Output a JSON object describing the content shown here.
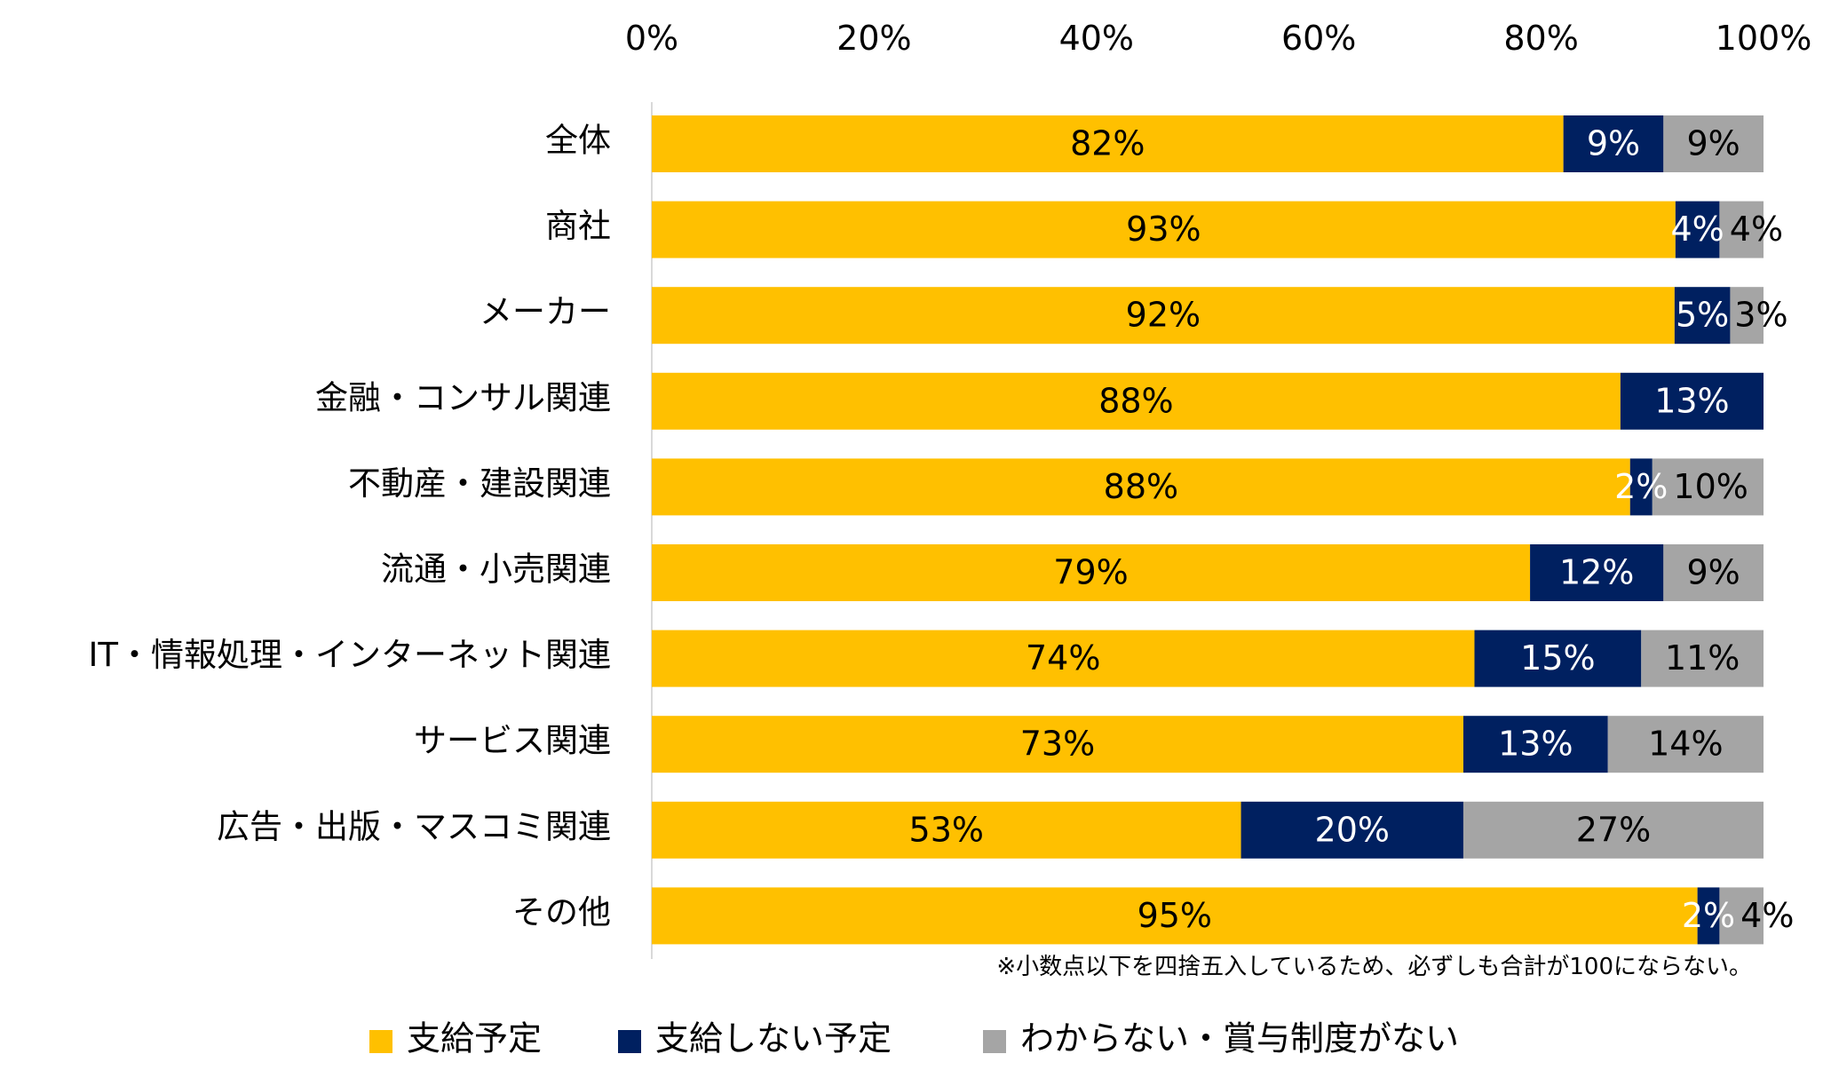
{
  "chart_data": {
    "type": "bar",
    "orientation": "horizontal",
    "stacked": true,
    "xlim": [
      0,
      100
    ],
    "x_ticks": [
      "0%",
      "20%",
      "40%",
      "60%",
      "80%",
      "100%"
    ],
    "x_axis_position": "top",
    "grid": false,
    "legend_position": "bottom",
    "categories": [
      "全体",
      "商社",
      "メーカー",
      "金融・コンサル関連",
      "不動産・建設関連",
      "流通・小売関連",
      "IT・情報処理・インターネット関連",
      "サービス関連",
      "広告・出版・マスコミ関連",
      "その他"
    ],
    "series": [
      {
        "name": "支給予定",
        "color": "#FFC000",
        "label_color": "#000000",
        "values": [
          82,
          93,
          92,
          88,
          88,
          79,
          74,
          73,
          53,
          95
        ]
      },
      {
        "name": "支給しない予定",
        "color": "#002060",
        "label_color": "#FFFFFF",
        "values": [
          9,
          4,
          5,
          13,
          2,
          12,
          15,
          13,
          20,
          2
        ]
      },
      {
        "name": "わからない・賞与制度がない",
        "color": "#A5A5A5",
        "label_color": "#000000",
        "values": [
          9,
          4,
          3,
          0,
          10,
          9,
          11,
          14,
          27,
          4
        ]
      }
    ],
    "annotation": "※小数点以下を四捨五入しているため、必ずしも合計が100にならない。"
  }
}
